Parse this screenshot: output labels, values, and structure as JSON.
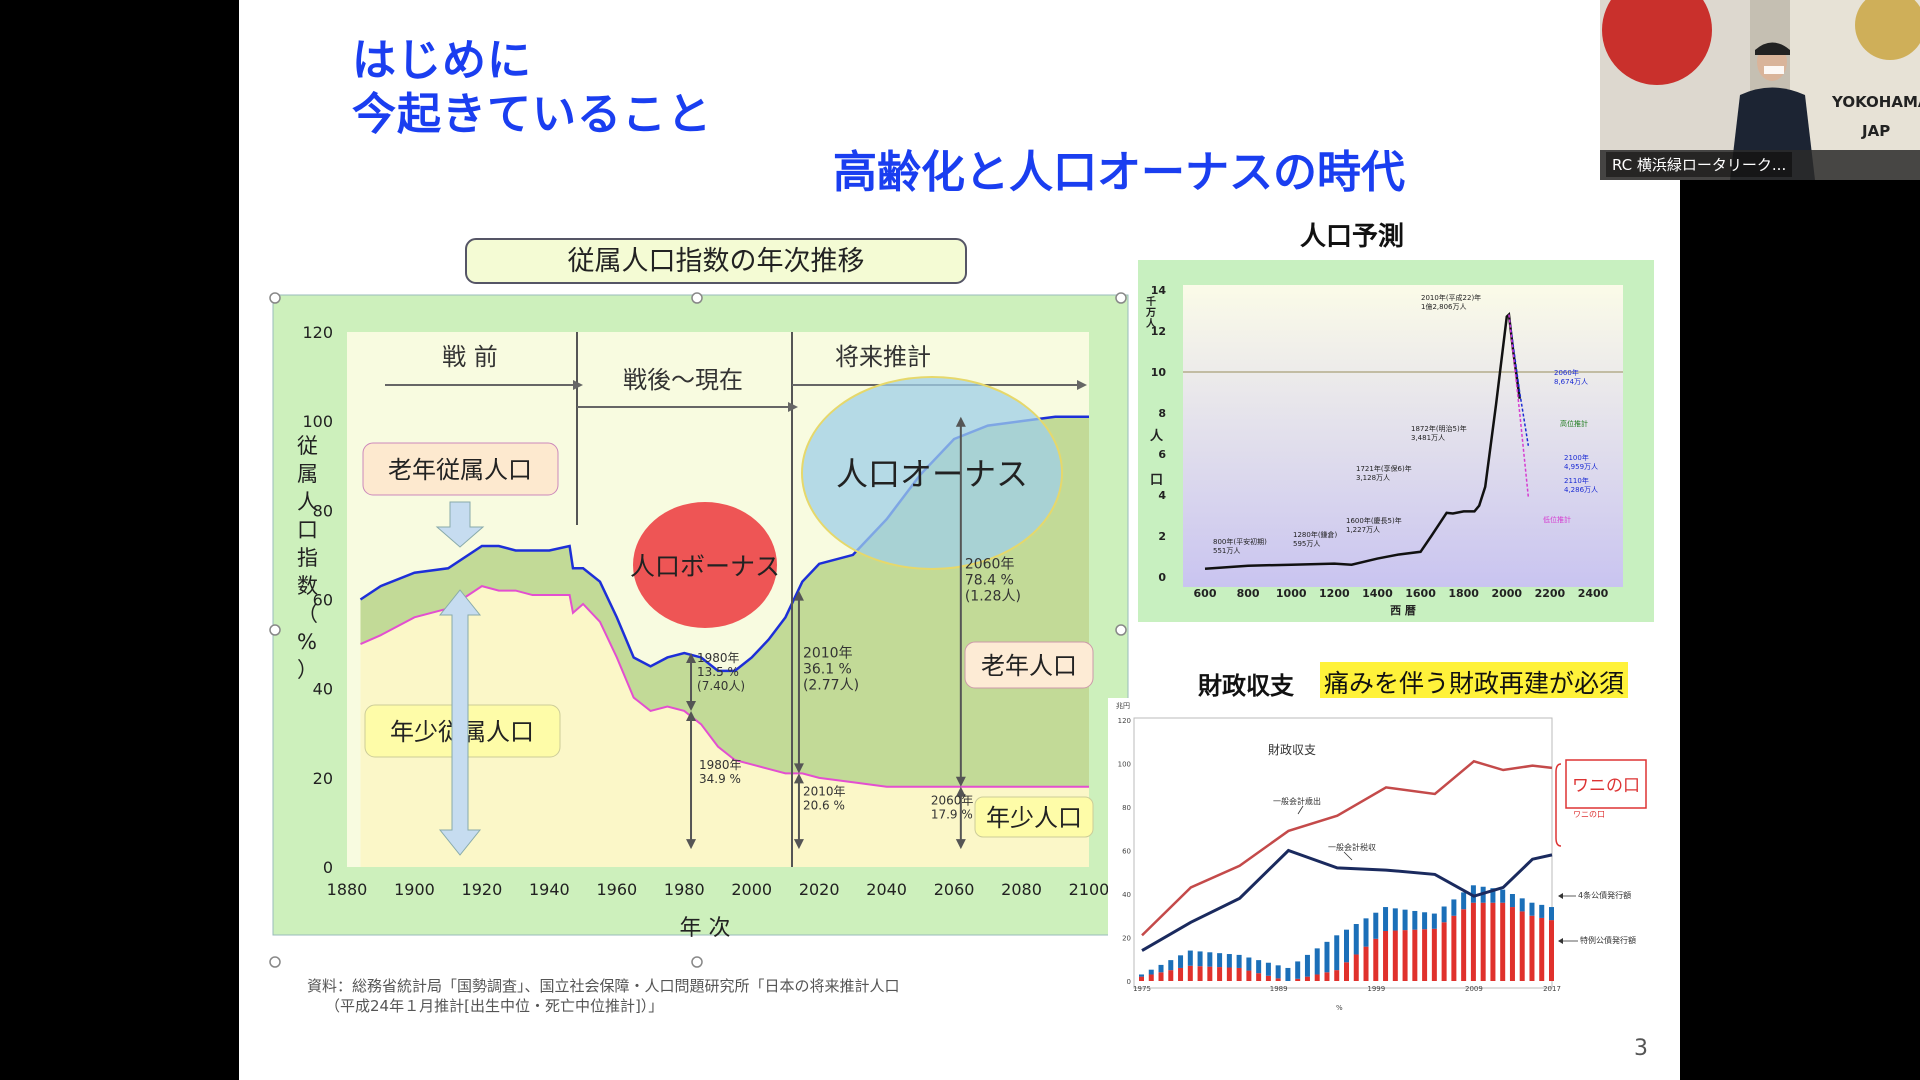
{
  "slide": {
    "title_line1": "はじめに",
    "title_line2": "今起きていること",
    "title_main": "高齢化と人口オーナスの時代",
    "page_number": "3"
  },
  "dependency_chart": {
    "header": "従属人口指数の年次推移",
    "ylabel": "従属人口指数（%）",
    "xlabel": "年 次",
    "eras": [
      "戦 前",
      "戦後～現在",
      "将来推計"
    ],
    "callouts": {
      "elderly_dep": "老年従属人口",
      "youth_dep": "年少従属人口",
      "bonus": "人口ボーナス",
      "onus": "人口オーナス",
      "elderly": "老年人口",
      "youth": "年少人口"
    },
    "annotations": [
      {
        "label": "1980年\n13.5 %\n(7.40人)"
      },
      {
        "label": "1980年\n34.9 %"
      },
      {
        "label": "2010年\n36.1 %\n(2.77人)"
      },
      {
        "label": "2010年\n20.6 %"
      },
      {
        "label": "2060年\n78.4 %\n(1.28人)"
      },
      {
        "label": "2060年\n17.9 %"
      }
    ],
    "source_line1": "資料：総務省統計局「国勢調査」、国立社会保障・人口問題研究所「日本の将来推計人口",
    "source_line2": "（平成24年１月推計[出生中位・死亡中位推計]）」"
  },
  "chart_data": [
    {
      "type": "area",
      "title": "従属人口指数の年次推移",
      "xlabel": "年 次",
      "ylabel": "従属人口指数（%）",
      "xlim": [
        1880,
        2100
      ],
      "ylim": [
        0,
        120
      ],
      "xticks": [
        1880,
        1900,
        1920,
        1940,
        1960,
        1980,
        2000,
        2020,
        2040,
        2060,
        2080,
        2100
      ],
      "yticks": [
        0,
        20,
        40,
        60,
        80,
        100,
        120
      ],
      "series": [
        {
          "name": "従属人口指数",
          "x": [
            1884,
            1890,
            1900,
            1910,
            1920,
            1925,
            1930,
            1935,
            1940,
            1946,
            1947,
            1950,
            1955,
            1960,
            1965,
            1970,
            1975,
            1980,
            1985,
            1990,
            1995,
            2000,
            2005,
            2010,
            2015,
            2020,
            2030,
            2040,
            2050,
            2060,
            2070,
            2080,
            2090,
            2100
          ],
          "values": [
            60,
            63,
            66,
            67,
            72,
            72,
            71,
            71,
            71,
            72,
            67,
            67,
            64,
            56,
            47,
            45,
            47,
            48,
            47,
            44,
            44,
            47,
            51,
            56,
            64,
            68,
            70,
            78,
            88,
            96,
            99,
            100,
            101,
            101
          ]
        },
        {
          "name": "年少人口指数",
          "x": [
            1884,
            1890,
            1900,
            1910,
            1920,
            1925,
            1930,
            1935,
            1940,
            1946,
            1947,
            1950,
            1955,
            1960,
            1965,
            1970,
            1975,
            1980,
            1985,
            1990,
            1995,
            2000,
            2005,
            2010,
            2015,
            2020,
            2030,
            2040,
            2050,
            2060,
            2070,
            2080,
            2090,
            2100
          ],
          "values": [
            50,
            52,
            56,
            58,
            63,
            62,
            62,
            61,
            61,
            61,
            57,
            59,
            55,
            47,
            38,
            35,
            36,
            35,
            32,
            27,
            24,
            23,
            22,
            21,
            21,
            20,
            19,
            18,
            18,
            18,
            18,
            18,
            18,
            18
          ]
        }
      ]
    },
    {
      "type": "line",
      "title": "人口予測",
      "xlabel": "西 暦",
      "ylabel": "人 口",
      "yunit": "千万人",
      "xlim": [
        600,
        2500
      ],
      "ylim": [
        0,
        14
      ],
      "xticks": [
        600,
        800,
        1000,
        1200,
        1400,
        1600,
        1800,
        2000,
        2200,
        2400
      ],
      "yticks": [
        0,
        2,
        4,
        6,
        8,
        10,
        12,
        14
      ],
      "series": [
        {
          "name": "人口",
          "x": [
            600,
            800,
            1000,
            1200,
            1280,
            1400,
            1500,
            1600,
            1650,
            1721,
            1750,
            1800,
            1850,
            1872,
            1900,
            1950,
            2000,
            2010,
            2030,
            2060
          ],
          "values": [
            0.4,
            0.55,
            0.6,
            0.65,
            0.6,
            0.9,
            1.1,
            1.23,
            2.0,
            3.13,
            3.1,
            3.2,
            3.2,
            3.48,
            4.4,
            8.4,
            12.7,
            12.8,
            11.0,
            8.7
          ]
        },
        {
          "name": "高位推計",
          "x": [
            2010,
            2060,
            2100
          ],
          "values": [
            12.8,
            9.0,
            6.4
          ]
        },
        {
          "name": "低位推計",
          "x": [
            2010,
            2060,
            2100
          ],
          "values": [
            12.8,
            8.0,
            3.9
          ]
        }
      ],
      "annotations": [
        {
          "label": "800年(平安初期)\n551万人"
        },
        {
          "label": "1280年(鎌倉)\n595万人"
        },
        {
          "label": "1600年(慶長5)年\n1,227万人"
        },
        {
          "label": "1721年(享保6)年\n3,128万人"
        },
        {
          "label": "1872年(明治5)年\n3,481万人"
        },
        {
          "label": "2010年(平成22)年\n1億2,806万人"
        },
        {
          "label": "2060年\n8,674万人"
        },
        {
          "label": "高位推計"
        },
        {
          "label": "2100年\n4,959万人"
        },
        {
          "label": "2110年\n4,286万人"
        },
        {
          "label": "低位推計"
        }
      ]
    },
    {
      "type": "bar",
      "title": "財政収支",
      "xlabel": "%",
      "xlim": [
        1975,
        2017
      ],
      "ylim": [
        0,
        120
      ],
      "xticks": [
        1975,
        1989,
        1999,
        2009,
        2017
      ],
      "yticks": [
        0,
        20,
        40,
        60,
        80,
        100,
        120
      ],
      "series": [
        {
          "name": "一般会計歳出",
          "type": "line",
          "x": [
            1975,
            1980,
            1985,
            1990,
            1995,
            2000,
            2005,
            2009,
            2012,
            2015,
            2017
          ],
          "values": [
            21,
            43,
            53,
            69,
            76,
            89,
            86,
            101,
            97,
            99,
            98
          ]
        },
        {
          "name": "一般会計税収",
          "type": "line",
          "x": [
            1975,
            1980,
            1985,
            1990,
            1995,
            2000,
            2005,
            2009,
            2012,
            2015,
            2017
          ],
          "values": [
            14,
            27,
            38,
            60,
            52,
            51,
            49,
            39,
            43,
            56,
            58
          ]
        },
        {
          "name": "4条公債発行額",
          "type": "bar",
          "x": [
            1975,
            1980,
            1985,
            1990,
            1995,
            2000,
            2005,
            2009,
            2012,
            2015,
            2017
          ],
          "values": [
            1,
            7,
            6,
            6,
            16,
            11,
            7,
            8,
            6,
            6,
            6
          ]
        },
        {
          "name": "特例公債発行額",
          "type": "bar",
          "x": [
            1975,
            1980,
            1985,
            1990,
            1995,
            2000,
            2005,
            2009,
            2012,
            2015,
            2017
          ],
          "values": [
            2,
            7,
            6,
            0,
            5,
            23,
            24,
            36,
            36,
            30,
            28
          ]
        }
      ]
    }
  ],
  "population_forecast": {
    "title": "人口予測",
    "yunit": "千万人",
    "ylabel": "人 口",
    "xlabel": "西 暦"
  },
  "fiscal": {
    "title": "財政収支",
    "highlight": "痛みを伴う財政再建が必須",
    "chart_title": "財政収支",
    "wani_label": "ワニの口",
    "wani_small": "ワニの口",
    "yunit": "兆円",
    "legend_expenditure": "一般会計歳出",
    "legend_tax": "一般会計税収",
    "legend_4jo": "4条公債発行額",
    "legend_tokurei": "特例公債発行額"
  },
  "webcam": {
    "label": "RC 横浜緑ロータリーク...",
    "banner_text": "YOKOHAMA-",
    "banner_text2": "JAP"
  },
  "colors": {
    "title_blue": "#1a3ef0",
    "chart_green_bg": "#cdf0bc",
    "red_line": "#c0392b",
    "navy_line": "#1a2a5e"
  }
}
